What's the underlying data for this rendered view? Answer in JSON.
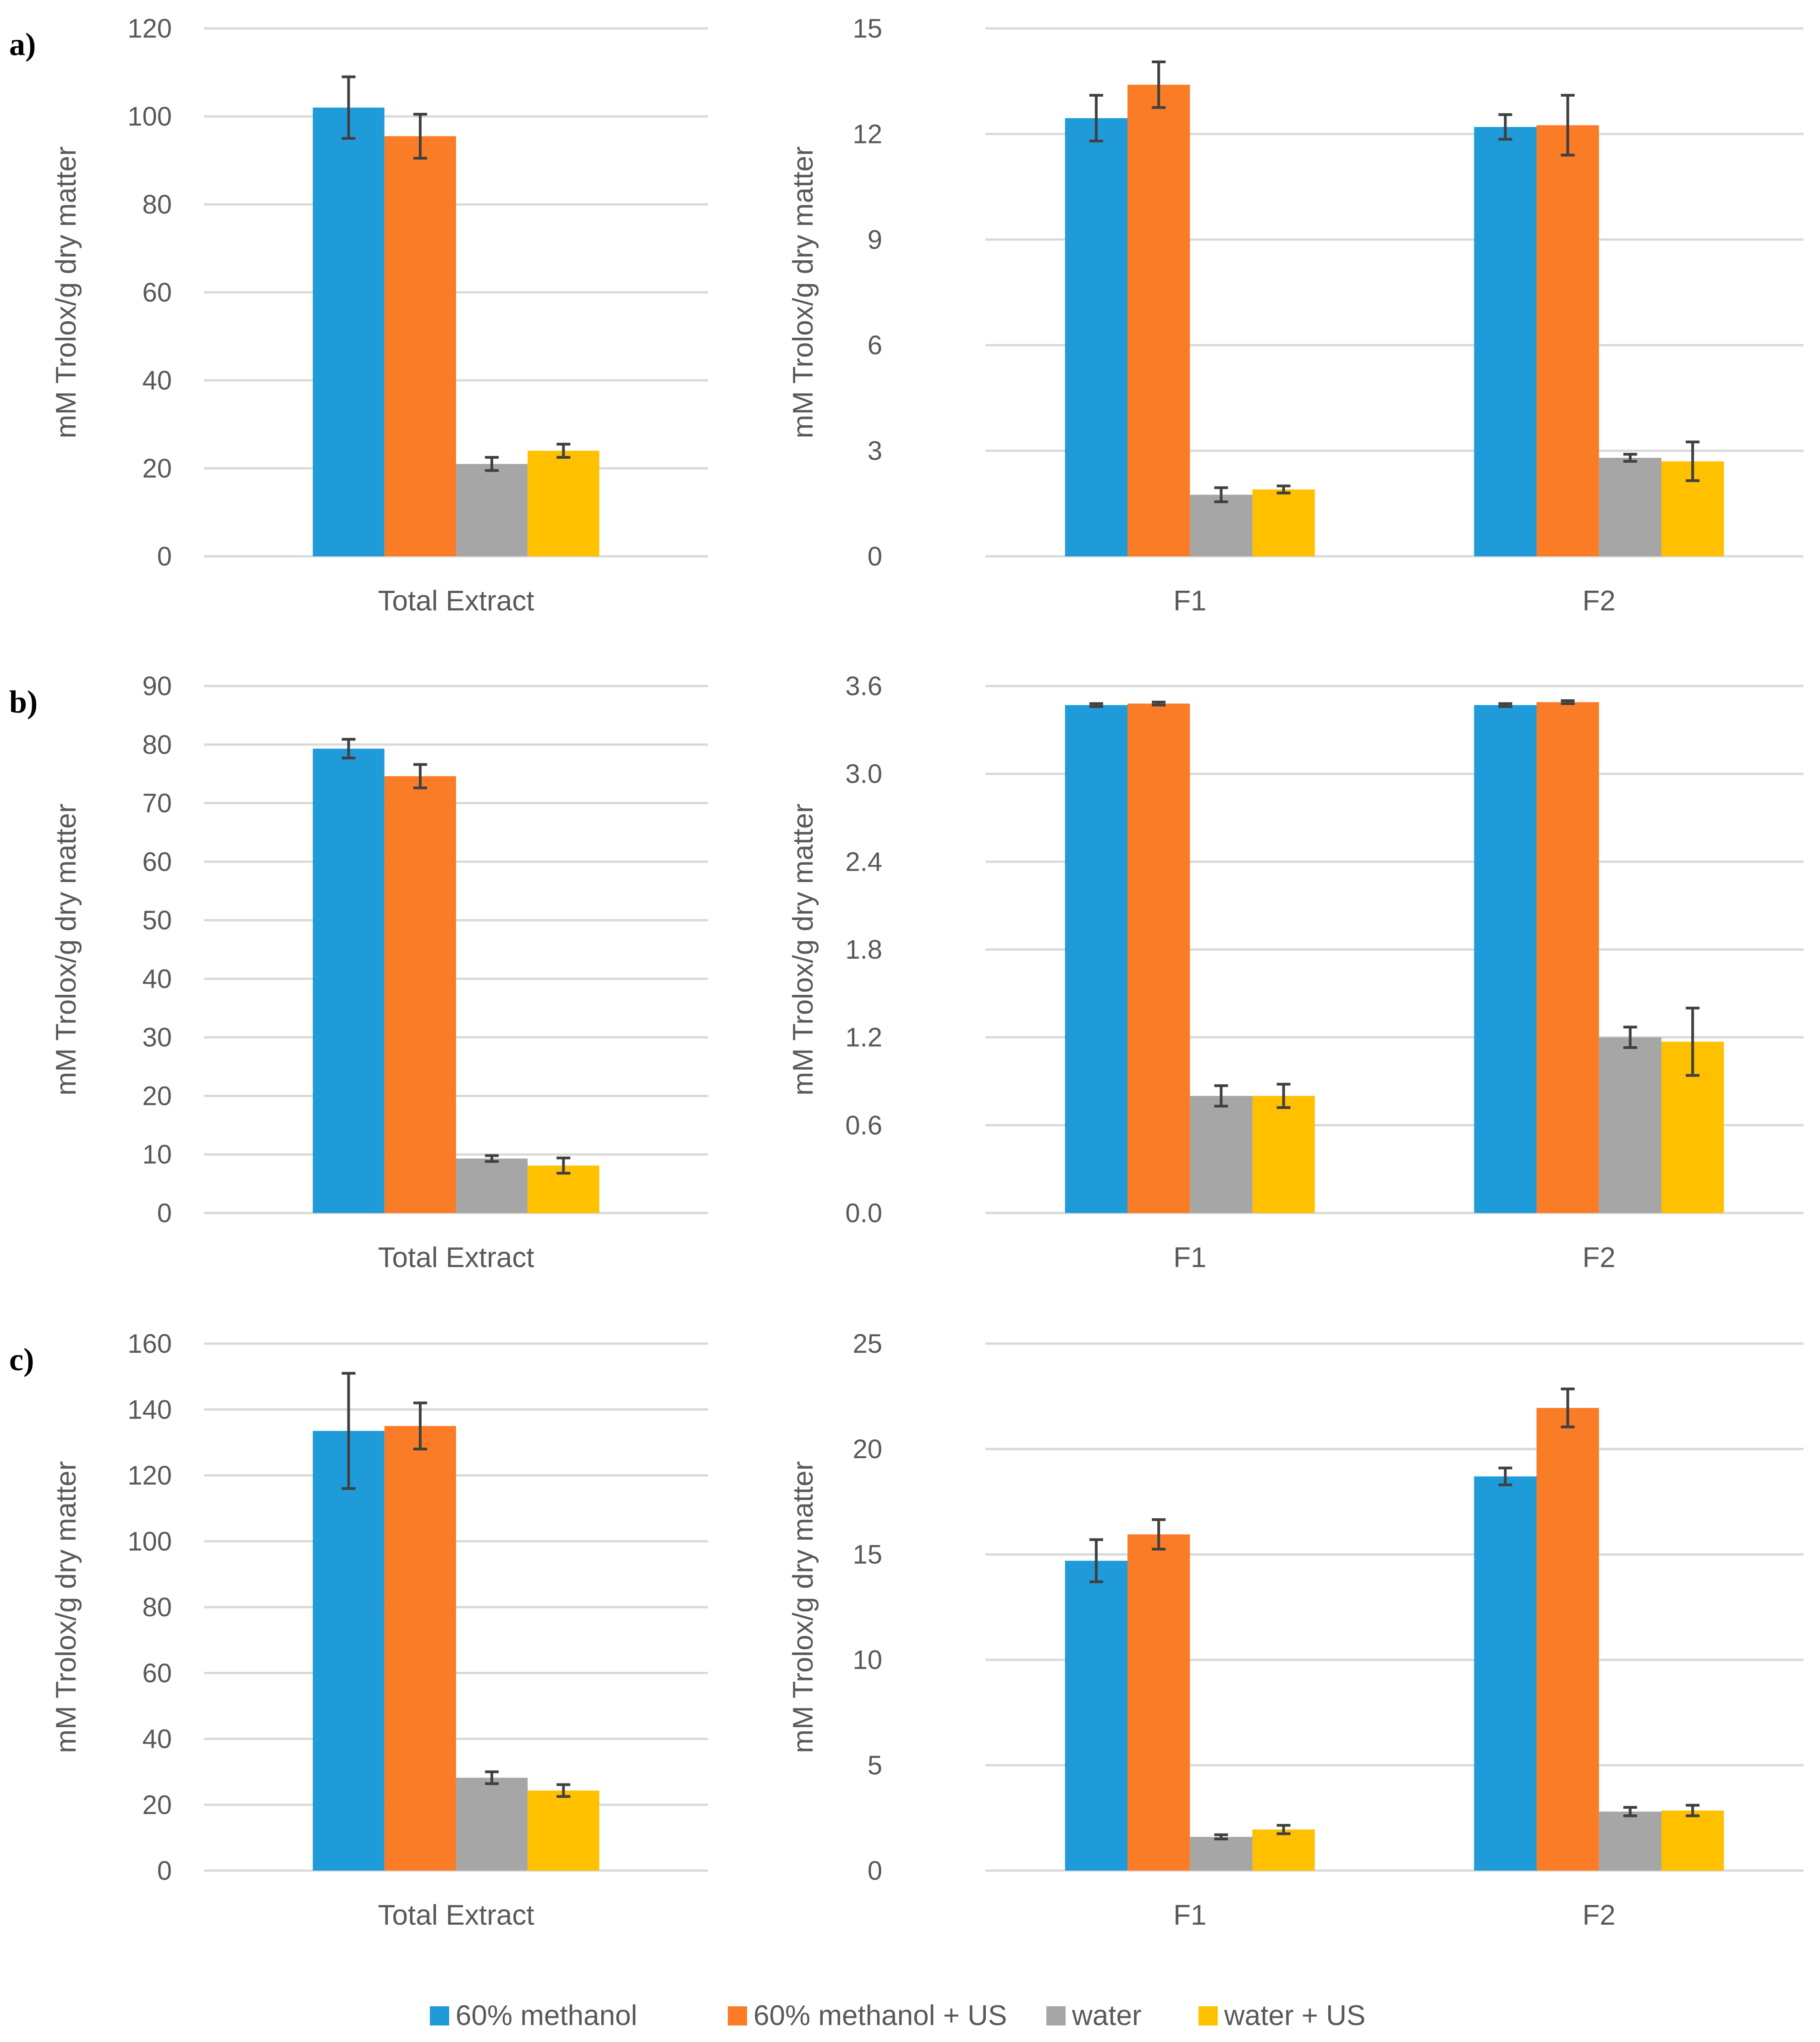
{
  "legend": [
    {
      "name": "60% methanol",
      "color": "#1f9bd9"
    },
    {
      "name": "60% methanol + US",
      "color": "#fb7c27"
    },
    {
      "name": "water",
      "color": "#a6a6a6"
    },
    {
      "name": "water + US",
      "color": "#ffc000"
    }
  ],
  "chart_data": [
    {
      "id": "a-total",
      "panel_label": "a)",
      "type": "bar",
      "ylabel": "mM Trolox/g dry matter",
      "ylim": [
        0,
        120
      ],
      "yticks": [
        "0",
        "20",
        "40",
        "60",
        "80",
        "100",
        "120"
      ],
      "ystep": 20,
      "categories": [
        "Total Extract"
      ],
      "series": [
        {
          "name": "60% methanol",
          "values": [
            102
          ],
          "errors": [
            7
          ]
        },
        {
          "name": "60% methanol + US",
          "values": [
            95.5
          ],
          "errors": [
            5
          ]
        },
        {
          "name": "water",
          "values": [
            21
          ],
          "errors": [
            1.5
          ]
        },
        {
          "name": "water + US",
          "values": [
            24
          ],
          "errors": [
            1.5
          ]
        }
      ]
    },
    {
      "id": "a-fractions",
      "panel_label": "",
      "type": "bar",
      "ylabel": "mM Trolox/g dry matter",
      "ylim": [
        0,
        15
      ],
      "yticks": [
        "0",
        "3",
        "6",
        "9",
        "12",
        "15"
      ],
      "ystep": 3,
      "categories": [
        "F1",
        "F2"
      ],
      "series": [
        {
          "name": "60% methanol",
          "values": [
            12.45,
            12.2
          ],
          "errors": [
            0.65,
            0.35
          ]
        },
        {
          "name": "60% methanol + US",
          "values": [
            13.4,
            12.25
          ],
          "errors": [
            0.65,
            0.85
          ]
        },
        {
          "name": "water",
          "values": [
            1.75,
            2.8
          ],
          "errors": [
            0.2,
            0.1
          ]
        },
        {
          "name": "water + US",
          "values": [
            1.9,
            2.7
          ],
          "errors": [
            0.1,
            0.55
          ]
        }
      ]
    },
    {
      "id": "b-total",
      "panel_label": "b)",
      "type": "bar",
      "ylabel": "mM Trolox/g dry matter",
      "ylim": [
        0,
        90
      ],
      "yticks": [
        "0",
        "10",
        "20",
        "30",
        "40",
        "50",
        "60",
        "70",
        "80",
        "90"
      ],
      "ystep": 10,
      "categories": [
        "Total Extract"
      ],
      "series": [
        {
          "name": "60% methanol",
          "values": [
            79.3
          ],
          "errors": [
            1.6
          ]
        },
        {
          "name": "60% methanol + US",
          "values": [
            74.6
          ],
          "errors": [
            2
          ]
        },
        {
          "name": "water",
          "values": [
            9.3
          ],
          "errors": [
            0.5
          ]
        },
        {
          "name": "water + US",
          "values": [
            8.1
          ],
          "errors": [
            1.3
          ]
        }
      ]
    },
    {
      "id": "b-fractions",
      "panel_label": "",
      "type": "bar",
      "ylabel": "mM Trolox/g dry matter",
      "ylim": [
        0,
        3.6
      ],
      "yticks": [
        "0.0",
        "0.6",
        "1.2",
        "1.8",
        "2.4",
        "3.0",
        "3.6"
      ],
      "ystep": 0.6,
      "categories": [
        "F1",
        "F2"
      ],
      "series": [
        {
          "name": "60% methanol",
          "values": [
            3.47,
            3.47
          ],
          "errors": [
            0.01,
            0.01
          ]
        },
        {
          "name": "60% methanol + US",
          "values": [
            3.48,
            3.49
          ],
          "errors": [
            0.01,
            0.01
          ]
        },
        {
          "name": "water",
          "values": [
            0.8,
            1.2
          ],
          "errors": [
            0.07,
            0.07
          ]
        },
        {
          "name": "water + US",
          "values": [
            0.8,
            1.17
          ],
          "errors": [
            0.08,
            0.23
          ]
        }
      ]
    },
    {
      "id": "c-total",
      "panel_label": "c)",
      "type": "bar",
      "ylabel": "mM Trolox/g dry matter",
      "ylim": [
        0,
        160
      ],
      "yticks": [
        "0",
        "20",
        "40",
        "60",
        "80",
        "100",
        "120",
        "140",
        "160"
      ],
      "ystep": 20,
      "categories": [
        "Total Extract"
      ],
      "series": [
        {
          "name": "60% methanol",
          "values": [
            133.5
          ],
          "errors": [
            17.5
          ]
        },
        {
          "name": "60% methanol + US",
          "values": [
            135
          ],
          "errors": [
            7
          ]
        },
        {
          "name": "water",
          "values": [
            28.2
          ],
          "errors": [
            1.8
          ]
        },
        {
          "name": "water + US",
          "values": [
            24.3
          ],
          "errors": [
            1.8
          ]
        }
      ]
    },
    {
      "id": "c-fractions",
      "panel_label": "",
      "type": "bar",
      "ylabel": "mM Trolox/g dry matter",
      "ylim": [
        0,
        25
      ],
      "yticks": [
        "0",
        "5",
        "10",
        "15",
        "20",
        "25"
      ],
      "ystep": 5,
      "categories": [
        "F1",
        "F2"
      ],
      "series": [
        {
          "name": "60% methanol",
          "values": [
            14.7,
            18.7
          ],
          "errors": [
            1,
            0.4
          ]
        },
        {
          "name": "60% methanol + US",
          "values": [
            15.95,
            21.95
          ],
          "errors": [
            0.7,
            0.9
          ]
        },
        {
          "name": "water",
          "values": [
            1.6,
            2.8
          ],
          "errors": [
            0.1,
            0.2
          ]
        },
        {
          "name": "water + US",
          "values": [
            1.95,
            2.85
          ],
          "errors": [
            0.2,
            0.25
          ]
        }
      ]
    }
  ]
}
